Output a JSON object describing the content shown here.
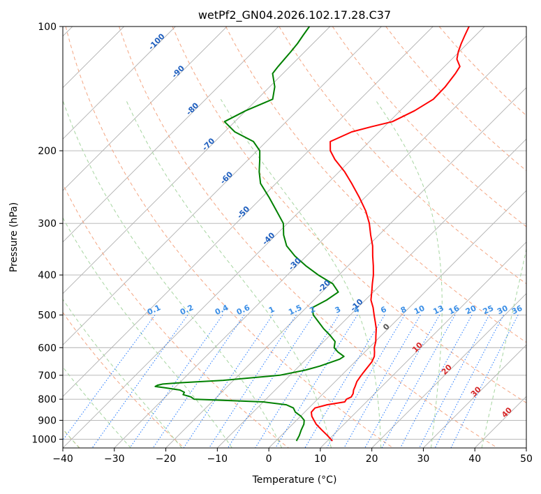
{
  "chart_data": {
    "type": "line",
    "title": "wetPf2_GN04.2026.102.17.28.C37",
    "xlabel": "Temperature (°C)",
    "ylabel": "Pressure (hPa)",
    "xlim": [
      -40,
      50
    ],
    "ylim": [
      1050,
      100
    ],
    "y_scale": "log",
    "skew": true,
    "grid": true,
    "x_ticks": [
      "−40",
      "−30",
      "−20",
      "−10",
      "0",
      "10",
      "20",
      "30",
      "40",
      "50"
    ],
    "x_tick_values": [
      -40,
      -30,
      -20,
      -10,
      0,
      10,
      20,
      30,
      40,
      50
    ],
    "y_ticks": [
      "100",
      "200",
      "300",
      "400",
      "500",
      "600",
      "700",
      "800",
      "900",
      "1000"
    ],
    "y_tick_values": [
      100,
      200,
      300,
      400,
      500,
      600,
      700,
      800,
      900,
      1000
    ],
    "series": [
      {
        "color": "#ff0000",
        "p": [
          1010,
          980,
          950,
          920,
          900,
          880,
          860,
          840,
          825,
          812,
          800,
          790,
          775,
          760,
          745,
          725,
          705,
          690,
          670,
          650,
          630,
          615,
          600,
          580,
          560,
          540,
          520,
          500,
          480,
          460,
          440,
          420,
          400,
          380,
          360,
          340,
          320,
          300,
          280,
          260,
          240,
          225,
          210,
          200,
          190,
          180,
          175,
          170,
          160,
          150,
          140,
          130,
          125,
          120,
          115,
          110,
          105,
          100
        ],
        "t": [
          11.0,
          9.0,
          6.8,
          4.6,
          3.4,
          2.2,
          1.3,
          1.2,
          2.9,
          5.8,
          5.6,
          6.1,
          5.8,
          5.2,
          4.8,
          4.2,
          3.9,
          3.7,
          3.5,
          3.3,
          2.7,
          1.9,
          1.0,
          0.1,
          -1.1,
          -2.3,
          -3.8,
          -5.4,
          -7.0,
          -8.9,
          -10.3,
          -11.8,
          -13.3,
          -15.1,
          -17.1,
          -19.1,
          -21.6,
          -24.1,
          -27.2,
          -31.0,
          -35.3,
          -38.9,
          -43.2,
          -45.8,
          -47.6,
          -45.3,
          -42.5,
          -39.4,
          -37.2,
          -35.8,
          -35.9,
          -36.5,
          -37.0,
          -39.0,
          -40.2,
          -41.2,
          -42.1,
          -43.0
        ]
      },
      {
        "color": "#008000",
        "p": [
          1010,
          980,
          950,
          920,
          900,
          880,
          860,
          840,
          825,
          812,
          800,
          795,
          790,
          780,
          770,
          760,
          750,
          745,
          740,
          735,
          730,
          720,
          700,
          680,
          665,
          650,
          640,
          630,
          615,
          600,
          580,
          560,
          540,
          520,
          500,
          480,
          460,
          440,
          420,
          400,
          380,
          360,
          340,
          320,
          300,
          280,
          260,
          240,
          225,
          210,
          200,
          190,
          180,
          170,
          160,
          150,
          140,
          130,
          125,
          120,
          115,
          110,
          105,
          100
        ],
        "t": [
          4.0,
          3.5,
          2.8,
          2.2,
          1.5,
          0.1,
          -1.8,
          -3.0,
          -5.0,
          -10.0,
          -24.0,
          -24.5,
          -25.0,
          -27.0,
          -27.2,
          -28.5,
          -32.0,
          -34.0,
          -33.8,
          -33.0,
          -30.0,
          -22.0,
          -12.0,
          -8.0,
          -6.0,
          -4.5,
          -3.5,
          -3.2,
          -5.2,
          -6.8,
          -7.8,
          -10.0,
          -12.5,
          -14.8,
          -17.2,
          -18.8,
          -17.5,
          -16.8,
          -19.5,
          -24.0,
          -28.2,
          -32.2,
          -35.8,
          -38.5,
          -40.8,
          -44.5,
          -48.5,
          -53.0,
          -55.5,
          -57.8,
          -59.5,
          -62.5,
          -68.0,
          -72.0,
          -70.0,
          -67.0,
          -69.0,
          -72.0,
          -72.3,
          -72.5,
          -72.7,
          -73.0,
          -73.5,
          -74.0
        ]
      }
    ],
    "dry_adiabats_theta_C": [
      -60,
      -40,
      -20,
      0,
      20,
      40,
      60,
      80,
      100,
      120,
      140,
      160
    ],
    "moist_adiabats_C": [
      -40,
      -30,
      -20,
      -10,
      0,
      10,
      20,
      30,
      40
    ],
    "mixing_ratio_lines": [
      0.1,
      0.2,
      0.4,
      0.6,
      1,
      1.5,
      2,
      3,
      4,
      6,
      8,
      10,
      13,
      16,
      20,
      25,
      30,
      36
    ],
    "mixing_ratio_labels": [
      "0.1",
      "0.2",
      "0.4",
      "0.6",
      "1",
      "1.5",
      "2",
      "3",
      "4",
      "6",
      "8",
      "10",
      "13",
      "16",
      "20",
      "25",
      "30",
      "36"
    ],
    "isotherm_labels_blue": [
      {
        "t": -100,
        "p": 110,
        "text": "-100"
      },
      {
        "t": -90,
        "p": 130,
        "text": "-90"
      },
      {
        "t": -80,
        "p": 160,
        "text": "-80"
      },
      {
        "t": -70,
        "p": 195,
        "text": "-70"
      },
      {
        "t": -60,
        "p": 235,
        "text": "-60"
      },
      {
        "t": -50,
        "p": 285,
        "text": "-50"
      },
      {
        "t": -40,
        "p": 330,
        "text": "-40"
      },
      {
        "t": -30,
        "p": 380,
        "text": "-30"
      },
      {
        "t": -20,
        "p": 430,
        "text": "-20"
      },
      {
        "t": -10,
        "p": 478,
        "text": "-10"
      }
    ],
    "isotherm_labels_other": [
      {
        "t": 0,
        "p": 540,
        "text": "0",
        "color": "#555555"
      },
      {
        "t": 10,
        "p": 605,
        "text": "10",
        "color": "#d62728"
      },
      {
        "t": 20,
        "p": 685,
        "text": "20",
        "color": "#d62728"
      },
      {
        "t": 30,
        "p": 775,
        "text": "30",
        "color": "#d62728"
      },
      {
        "t": 40,
        "p": 870,
        "text": "40",
        "color": "#d62728"
      }
    ],
    "colors": {
      "temperature": "#ff0000",
      "dewpoint": "#008000",
      "grid": "#b0b0b0",
      "dry_adiabat": "#f4a582",
      "moist_adiabat": "#a6d5a0",
      "mixing_ratio": "#1f77ff",
      "blue_label": "#1f5fbf",
      "mixing_label": "#3a8ee6"
    }
  }
}
